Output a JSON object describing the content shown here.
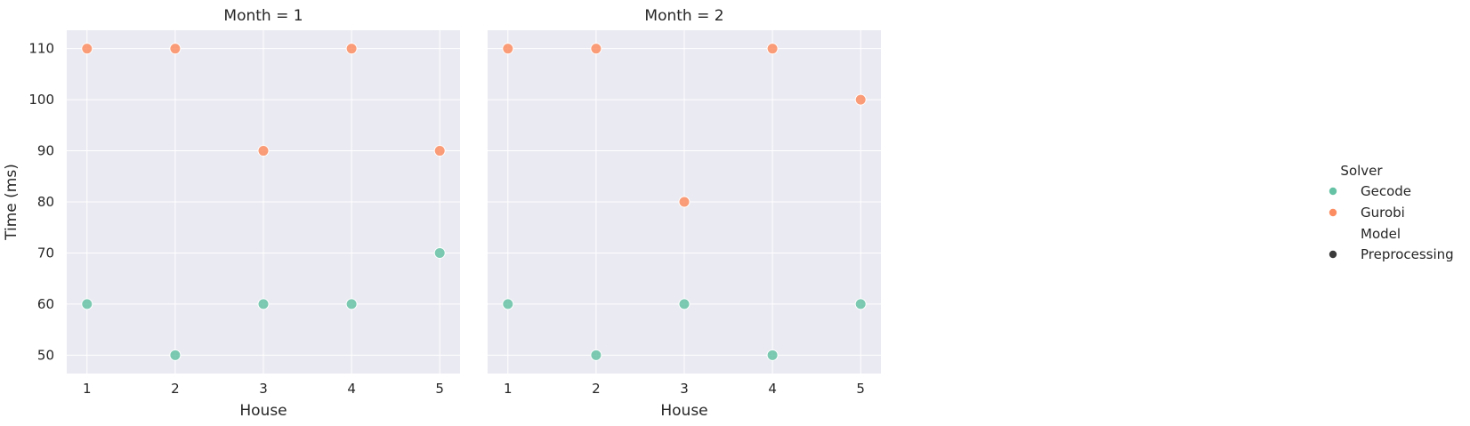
{
  "chart_data": {
    "type": "scatter",
    "facet_variable": "Month",
    "panels": [
      {
        "title": "Month = 1",
        "series": [
          {
            "name": "Gecode",
            "x": [
              1,
              2,
              3,
              4,
              5
            ],
            "y": [
              60,
              50,
              60,
              60,
              70
            ]
          },
          {
            "name": "Gurobi",
            "x": [
              1,
              2,
              3,
              4,
              5
            ],
            "y": [
              110,
              110,
              90,
              110,
              90
            ]
          }
        ]
      },
      {
        "title": "Month = 2",
        "series": [
          {
            "name": "Gecode",
            "x": [
              1,
              2,
              3,
              4,
              5
            ],
            "y": [
              60,
              50,
              60,
              50,
              60
            ]
          },
          {
            "name": "Gurobi",
            "x": [
              1,
              2,
              3,
              4,
              5
            ],
            "y": [
              110,
              110,
              80,
              110,
              100
            ]
          }
        ]
      }
    ],
    "xlabel": "House",
    "ylabel": "Time (ms)",
    "xticks": [
      1,
      2,
      3,
      4,
      5
    ],
    "yticks": [
      50,
      60,
      70,
      80,
      90,
      100,
      110
    ],
    "xlim": [
      0.77,
      5.23
    ],
    "ylim": [
      46.4,
      113.6
    ],
    "grid": true,
    "legend": {
      "placement": "right",
      "hue_title": "Solver",
      "hue_entries": [
        "Gecode",
        "Gurobi"
      ],
      "style_title": "Model",
      "style_entries": [
        "Preprocessing"
      ]
    },
    "colors": {
      "Gecode": "#66c2a5",
      "Gurobi": "#fc8d62",
      "style_marker": "#3b3b3b",
      "panel_background": "#eaeaf2"
    }
  }
}
